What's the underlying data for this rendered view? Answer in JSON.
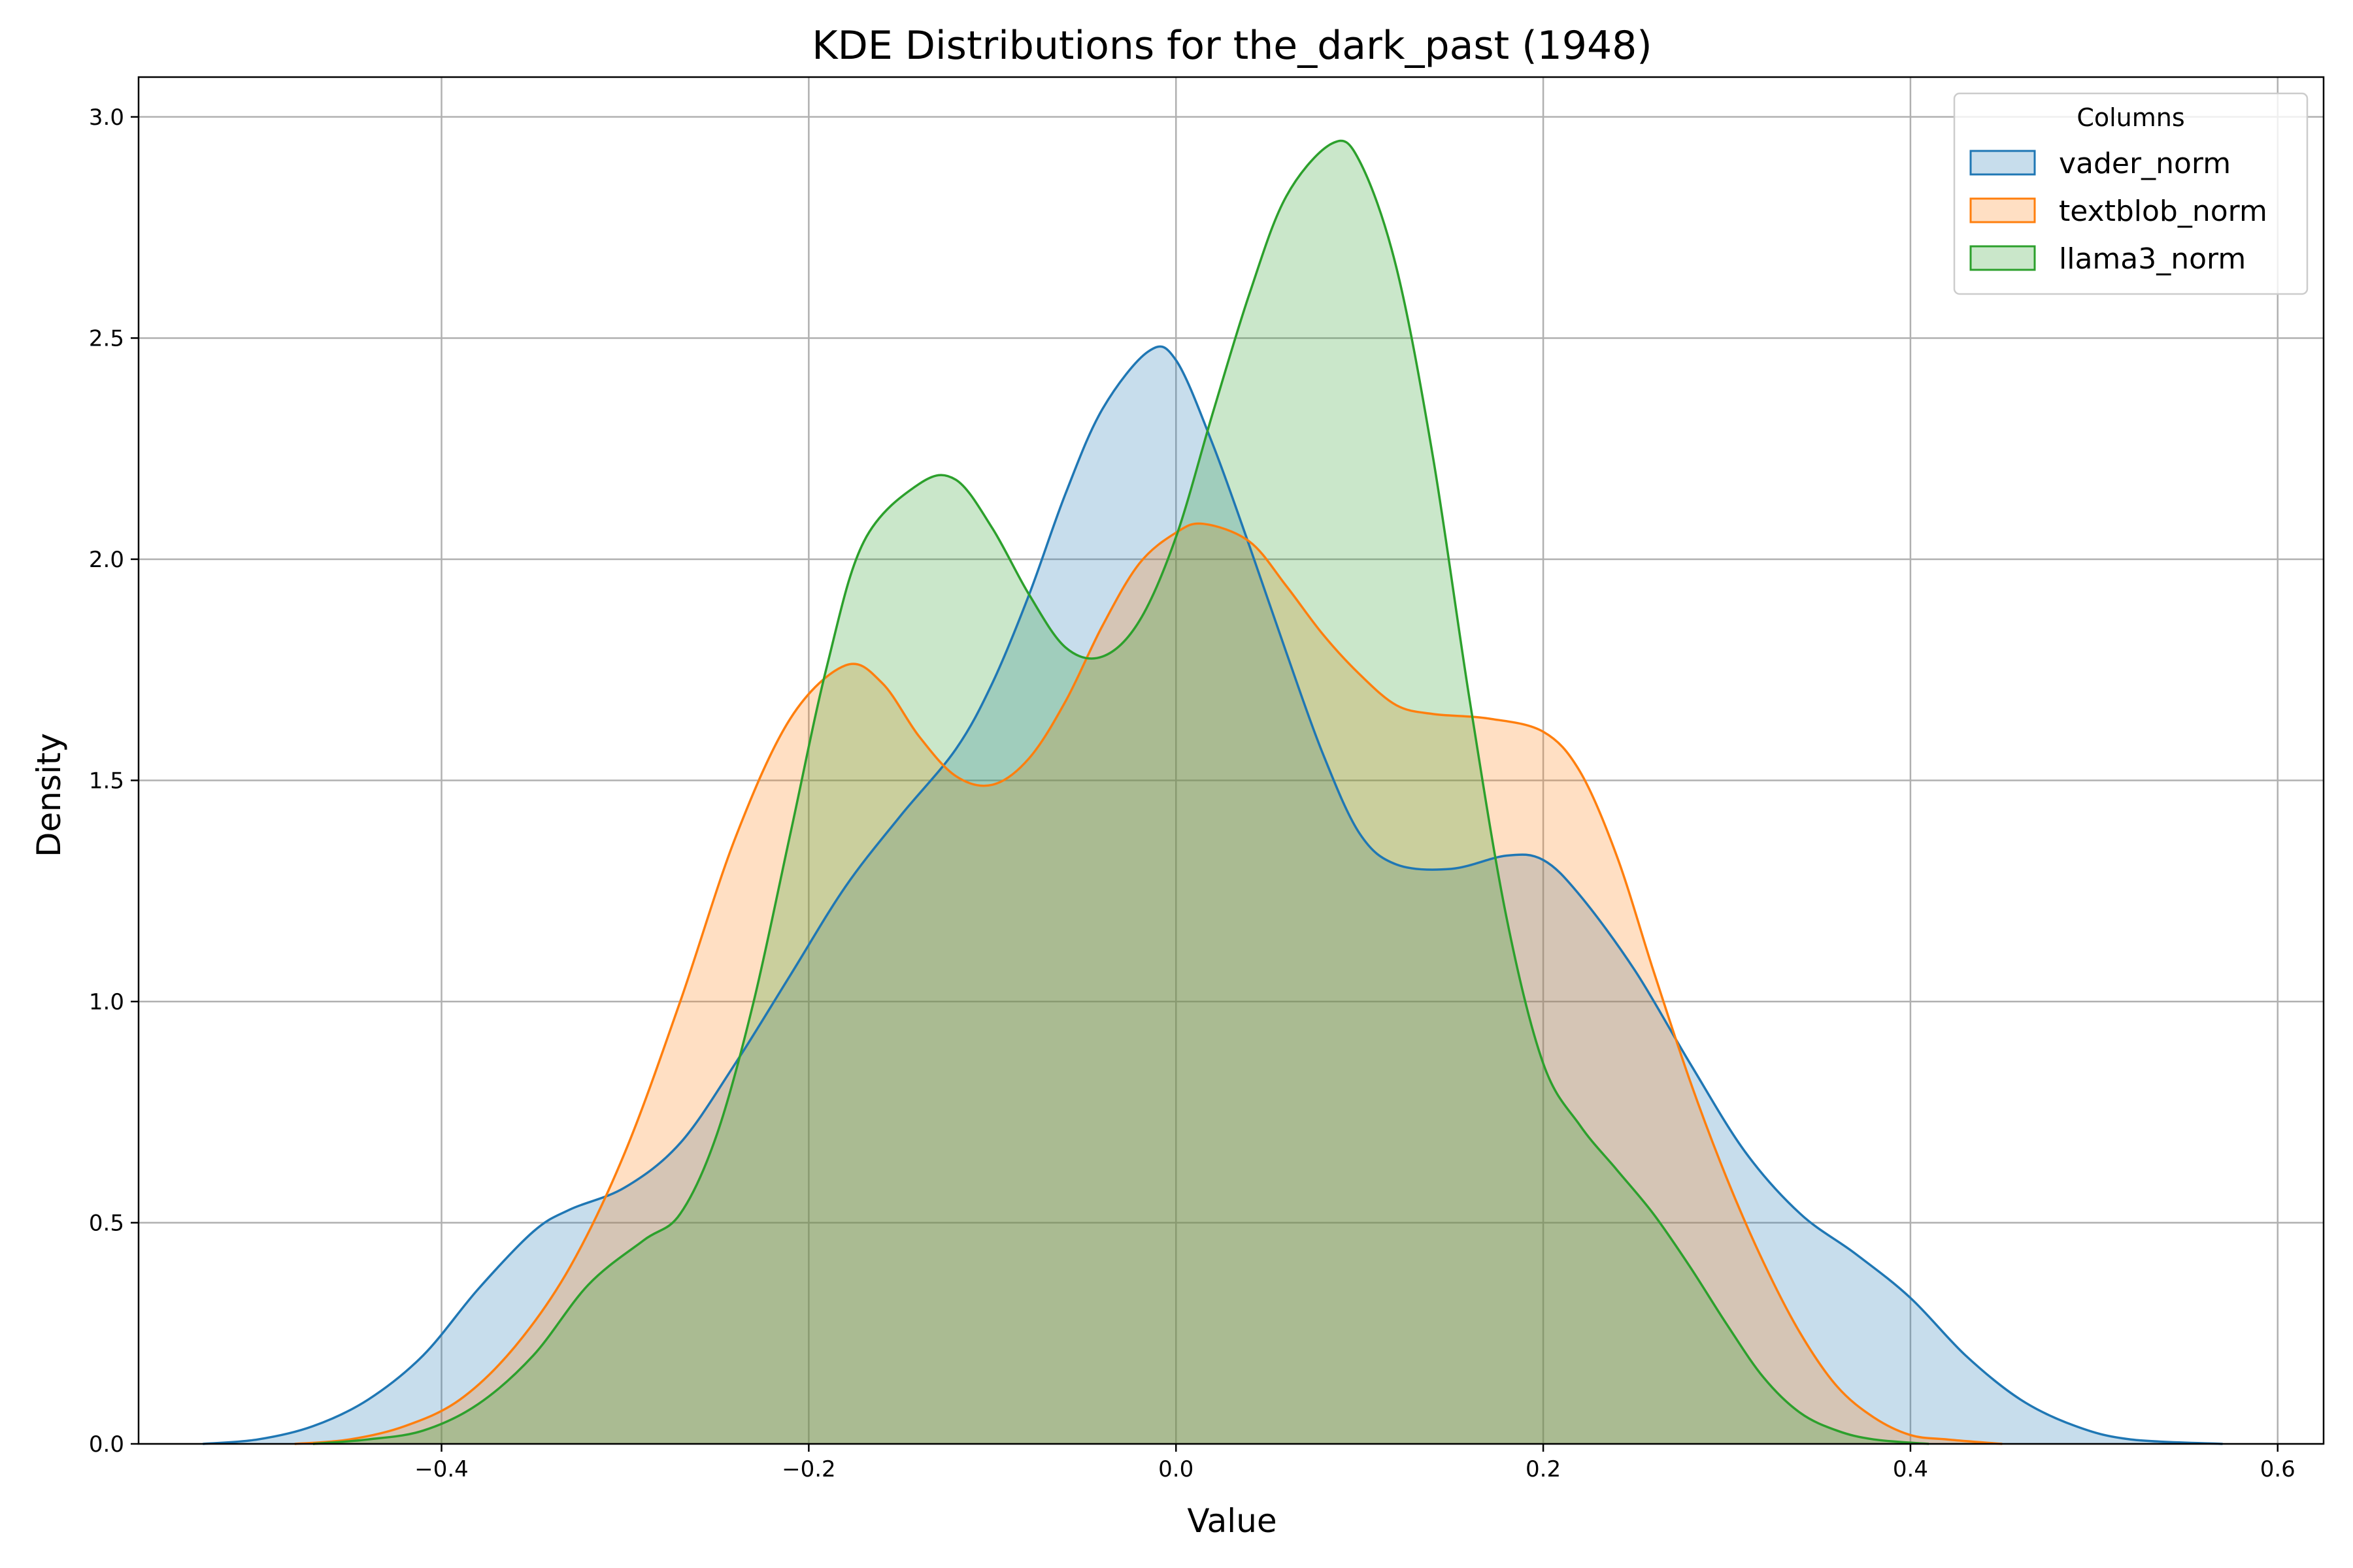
{
  "chart_data": {
    "type": "area",
    "title": "KDE Distributions for the_dark_past (1948)",
    "xlabel": "Value",
    "ylabel": "Density",
    "xlim": [
      -0.565,
      0.625
    ],
    "ylim": [
      0,
      3.09
    ],
    "xticks": [
      -0.4,
      -0.2,
      0.0,
      0.2,
      0.4,
      0.6
    ],
    "xtick_labels": [
      "−0.4",
      "−0.2",
      "0.0",
      "0.2",
      "0.4",
      "0.6"
    ],
    "yticks": [
      0.0,
      0.5,
      1.0,
      1.5,
      2.0,
      2.5,
      3.0
    ],
    "ytick_labels": [
      "0.0",
      "0.5",
      "1.0",
      "1.5",
      "2.0",
      "2.5",
      "3.0"
    ],
    "grid": true,
    "legend": {
      "title": "Columns",
      "placement": "top-right"
    },
    "series": [
      {
        "name": "vader_norm",
        "color": "#1f77b4",
        "points": [
          [
            -0.53,
            0.0
          ],
          [
            -0.5,
            0.01
          ],
          [
            -0.47,
            0.04
          ],
          [
            -0.44,
            0.1
          ],
          [
            -0.41,
            0.2
          ],
          [
            -0.38,
            0.35
          ],
          [
            -0.35,
            0.48
          ],
          [
            -0.33,
            0.53
          ],
          [
            -0.3,
            0.58
          ],
          [
            -0.27,
            0.68
          ],
          [
            -0.24,
            0.86
          ],
          [
            -0.21,
            1.06
          ],
          [
            -0.18,
            1.26
          ],
          [
            -0.15,
            1.42
          ],
          [
            -0.12,
            1.57
          ],
          [
            -0.1,
            1.72
          ],
          [
            -0.08,
            1.92
          ],
          [
            -0.06,
            2.15
          ],
          [
            -0.04,
            2.34
          ],
          [
            -0.015,
            2.47
          ],
          [
            0.0,
            2.45
          ],
          [
            0.02,
            2.26
          ],
          [
            0.04,
            2.03
          ],
          [
            0.06,
            1.79
          ],
          [
            0.08,
            1.56
          ],
          [
            0.1,
            1.38
          ],
          [
            0.12,
            1.31
          ],
          [
            0.15,
            1.3
          ],
          [
            0.18,
            1.33
          ],
          [
            0.2,
            1.32
          ],
          [
            0.22,
            1.24
          ],
          [
            0.25,
            1.07
          ],
          [
            0.28,
            0.86
          ],
          [
            0.31,
            0.66
          ],
          [
            0.34,
            0.52
          ],
          [
            0.37,
            0.43
          ],
          [
            0.4,
            0.33
          ],
          [
            0.43,
            0.2
          ],
          [
            0.46,
            0.1
          ],
          [
            0.49,
            0.04
          ],
          [
            0.52,
            0.01
          ],
          [
            0.57,
            0.0
          ]
        ]
      },
      {
        "name": "textblob_norm",
        "color": "#ff7f0e",
        "points": [
          [
            -0.48,
            0.0
          ],
          [
            -0.45,
            0.01
          ],
          [
            -0.42,
            0.04
          ],
          [
            -0.39,
            0.1
          ],
          [
            -0.36,
            0.22
          ],
          [
            -0.33,
            0.4
          ],
          [
            -0.3,
            0.66
          ],
          [
            -0.27,
            1.0
          ],
          [
            -0.24,
            1.37
          ],
          [
            -0.21,
            1.64
          ],
          [
            -0.18,
            1.76
          ],
          [
            -0.16,
            1.72
          ],
          [
            -0.14,
            1.6
          ],
          [
            -0.12,
            1.51
          ],
          [
            -0.1,
            1.49
          ],
          [
            -0.08,
            1.55
          ],
          [
            -0.06,
            1.68
          ],
          [
            -0.04,
            1.85
          ],
          [
            -0.02,
            1.99
          ],
          [
            0.0,
            2.06
          ],
          [
            0.015,
            2.08
          ],
          [
            0.04,
            2.04
          ],
          [
            0.06,
            1.94
          ],
          [
            0.08,
            1.83
          ],
          [
            0.1,
            1.74
          ],
          [
            0.12,
            1.67
          ],
          [
            0.14,
            1.65
          ],
          [
            0.17,
            1.64
          ],
          [
            0.2,
            1.61
          ],
          [
            0.22,
            1.52
          ],
          [
            0.24,
            1.33
          ],
          [
            0.26,
            1.07
          ],
          [
            0.28,
            0.82
          ],
          [
            0.3,
            0.6
          ],
          [
            0.32,
            0.41
          ],
          [
            0.34,
            0.25
          ],
          [
            0.36,
            0.13
          ],
          [
            0.38,
            0.06
          ],
          [
            0.4,
            0.02
          ],
          [
            0.42,
            0.01
          ],
          [
            0.45,
            0.0
          ]
        ]
      },
      {
        "name": "llama3_norm",
        "color": "#2ca02c",
        "points": [
          [
            -0.47,
            0.0
          ],
          [
            -0.44,
            0.01
          ],
          [
            -0.41,
            0.03
          ],
          [
            -0.38,
            0.09
          ],
          [
            -0.35,
            0.2
          ],
          [
            -0.32,
            0.36
          ],
          [
            -0.29,
            0.46
          ],
          [
            -0.27,
            0.52
          ],
          [
            -0.25,
            0.7
          ],
          [
            -0.23,
            1.0
          ],
          [
            -0.21,
            1.38
          ],
          [
            -0.19,
            1.76
          ],
          [
            -0.17,
            2.04
          ],
          [
            -0.14,
            2.17
          ],
          [
            -0.12,
            2.18
          ],
          [
            -0.1,
            2.07
          ],
          [
            -0.08,
            1.92
          ],
          [
            -0.06,
            1.8
          ],
          [
            -0.04,
            1.78
          ],
          [
            -0.02,
            1.86
          ],
          [
            0.0,
            2.05
          ],
          [
            0.02,
            2.33
          ],
          [
            0.04,
            2.6
          ],
          [
            0.06,
            2.82
          ],
          [
            0.085,
            2.94
          ],
          [
            0.1,
            2.9
          ],
          [
            0.12,
            2.66
          ],
          [
            0.14,
            2.23
          ],
          [
            0.16,
            1.68
          ],
          [
            0.18,
            1.19
          ],
          [
            0.2,
            0.86
          ],
          [
            0.22,
            0.72
          ],
          [
            0.24,
            0.62
          ],
          [
            0.26,
            0.52
          ],
          [
            0.28,
            0.4
          ],
          [
            0.3,
            0.27
          ],
          [
            0.32,
            0.15
          ],
          [
            0.34,
            0.07
          ],
          [
            0.36,
            0.03
          ],
          [
            0.38,
            0.01
          ],
          [
            0.41,
            0.0
          ]
        ]
      }
    ]
  }
}
